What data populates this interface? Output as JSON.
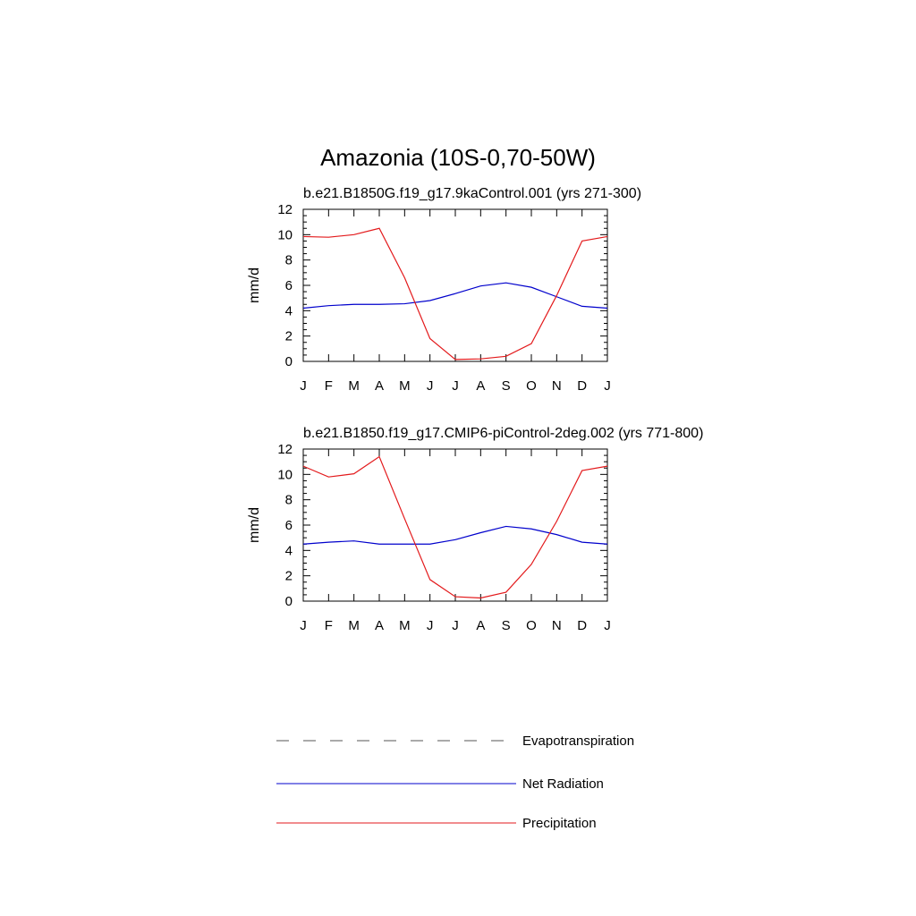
{
  "title": "Amazonia (10S-0,70-50W)",
  "chart_data": [
    {
      "type": "line",
      "title": "b.e21.B1850G.f19_g17.9kaControl.001 (yrs 271-300)",
      "ylabel": "mm/d",
      "xlabel": "",
      "ylim": [
        0,
        12
      ],
      "yticks": [
        "0",
        "2",
        "4",
        "6",
        "8",
        "10",
        "12"
      ],
      "categories": [
        "J",
        "F",
        "M",
        "A",
        "M",
        "J",
        "J",
        "A",
        "S",
        "O",
        "N",
        "D",
        "J"
      ],
      "series": [
        {
          "name": "Net Radiation",
          "color": "#0000cc",
          "values": [
            4.2,
            4.4,
            4.5,
            4.5,
            4.55,
            4.8,
            5.35,
            5.95,
            6.2,
            5.85,
            5.1,
            4.35,
            4.2
          ]
        },
        {
          "name": "Precipitation",
          "color": "#e31a1c",
          "values": [
            9.85,
            9.8,
            10.0,
            10.5,
            6.6,
            1.8,
            0.15,
            0.2,
            0.4,
            1.4,
            5.2,
            9.5,
            9.85
          ]
        }
      ]
    },
    {
      "type": "line",
      "title": "b.e21.B1850.f19_g17.CMIP6-piControl-2deg.002 (yrs 771-800)",
      "ylabel": "mm/d",
      "xlabel": "",
      "ylim": [
        0,
        12
      ],
      "yticks": [
        "0",
        "2",
        "4",
        "6",
        "8",
        "10",
        "12"
      ],
      "categories": [
        "J",
        "F",
        "M",
        "A",
        "M",
        "J",
        "J",
        "A",
        "S",
        "O",
        "N",
        "D",
        "J"
      ],
      "series": [
        {
          "name": "Net Radiation",
          "color": "#0000cc",
          "values": [
            4.5,
            4.65,
            4.75,
            4.5,
            4.5,
            4.5,
            4.85,
            5.4,
            5.9,
            5.7,
            5.25,
            4.65,
            4.5
          ]
        },
        {
          "name": "Precipitation",
          "color": "#e31a1c",
          "values": [
            10.65,
            9.8,
            10.05,
            11.4,
            6.5,
            1.7,
            0.35,
            0.25,
            0.7,
            2.9,
            6.3,
            10.3,
            10.65
          ]
        }
      ]
    }
  ],
  "legend": [
    {
      "label": "Evapotranspiration",
      "style": "dashed",
      "color": "#555555"
    },
    {
      "label": "Net Radiation",
      "style": "solid",
      "color": "#0000cc"
    },
    {
      "label": "Precipitation",
      "style": "solid",
      "color": "#e31a1c"
    }
  ]
}
